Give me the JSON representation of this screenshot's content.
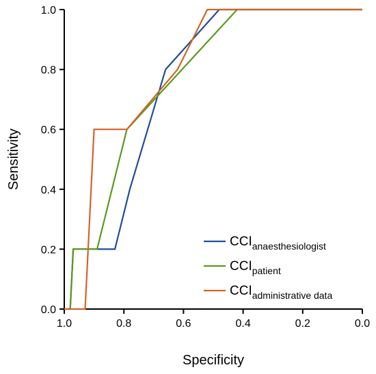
{
  "chart_data": {
    "type": "line",
    "xlabel": "Specificity",
    "ylabel": "Sensitivity",
    "xlim": [
      1.0,
      0.0
    ],
    "ylim": [
      0.0,
      1.0
    ],
    "x_reversed": true,
    "x_ticks": [
      "1.0",
      "0.8",
      "0.6",
      "0.4",
      "0.2",
      "0.0"
    ],
    "y_ticks": [
      "0.0",
      "0.2",
      "0.4",
      "0.6",
      "0.8",
      "1.0"
    ],
    "grid": false,
    "legend_position": "bottom-right",
    "series": [
      {
        "name": "CCI",
        "name_subscript": "anaesthesiologist",
        "color": "#1f4e9c",
        "points": [
          [
            1.0,
            0.0
          ],
          [
            0.98,
            0.0
          ],
          [
            0.97,
            0.2
          ],
          [
            0.83,
            0.2
          ],
          [
            0.78,
            0.4
          ],
          [
            0.66,
            0.8
          ],
          [
            0.48,
            1.0
          ],
          [
            0.0,
            1.0
          ]
        ]
      },
      {
        "name": "CCI",
        "name_subscript": "patient",
        "color": "#5b9a1f",
        "points": [
          [
            1.0,
            0.0
          ],
          [
            0.98,
            0.0
          ],
          [
            0.97,
            0.2
          ],
          [
            0.89,
            0.2
          ],
          [
            0.84,
            0.4
          ],
          [
            0.79,
            0.6
          ],
          [
            0.42,
            1.0
          ],
          [
            0.0,
            1.0
          ]
        ]
      },
      {
        "name": "CCI",
        "name_subscript": "administrative data",
        "color": "#d4632a",
        "points": [
          [
            1.0,
            0.0
          ],
          [
            0.93,
            0.0
          ],
          [
            0.92,
            0.2
          ],
          [
            0.9,
            0.6
          ],
          [
            0.79,
            0.6
          ],
          [
            0.62,
            0.8
          ],
          [
            0.52,
            1.0
          ],
          [
            0.0,
            1.0
          ]
        ]
      }
    ]
  }
}
